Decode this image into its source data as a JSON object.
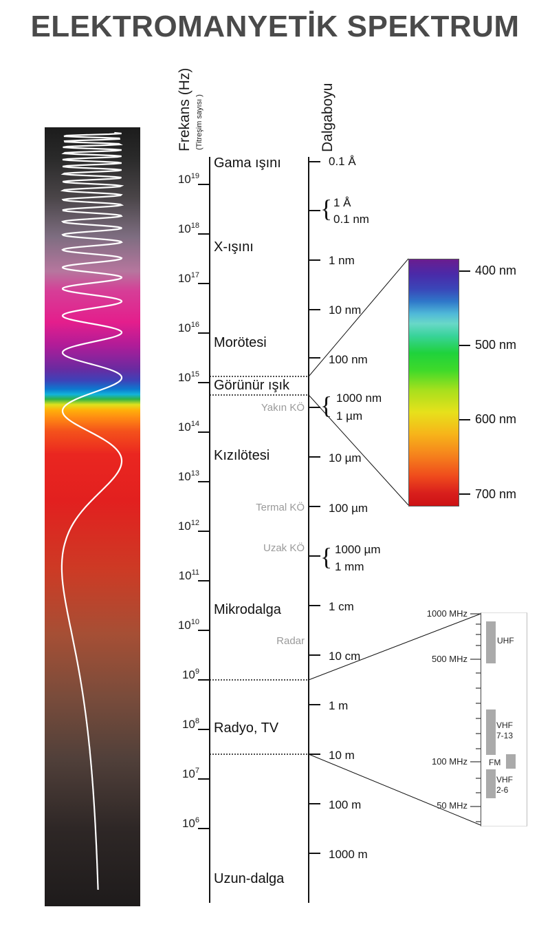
{
  "title": "ELEKTROMANYETİK SPEKTRUM",
  "axes": {
    "frequency_title": "Frekans (Hz)",
    "frequency_subtitle": "(Titreşim sayısı )",
    "wavelength_title": "Dalgaboyu"
  },
  "frequency_ticks": [
    {
      "base": "10",
      "exp": "19"
    },
    {
      "base": "10",
      "exp": "18"
    },
    {
      "base": "10",
      "exp": "17"
    },
    {
      "base": "10",
      "exp": "16"
    },
    {
      "base": "10",
      "exp": "15"
    },
    {
      "base": "10",
      "exp": "14"
    },
    {
      "base": "10",
      "exp": "13"
    },
    {
      "base": "10",
      "exp": "12"
    },
    {
      "base": "10",
      "exp": "11"
    },
    {
      "base": "10",
      "exp": "10"
    },
    {
      "base": "10",
      "exp": "9"
    },
    {
      "base": "10",
      "exp": "8"
    },
    {
      "base": "10",
      "exp": "7"
    },
    {
      "base": "10",
      "exp": "6"
    }
  ],
  "regions": [
    "Gama ışını",
    "X-ışını",
    "Morötesi",
    "Görünür ışık",
    "Kızılötesi",
    "Mikrodalga",
    "Radyo, TV",
    "Uzun-dalga"
  ],
  "subregions": [
    "Yakın KÖ",
    "Termal KÖ",
    "Uzak KÖ",
    "Radar"
  ],
  "wavelength_labels": {
    "single": [
      "0.1 Å",
      "1 nm",
      "10 nm",
      "100 nm",
      "10 µm",
      "100 µm",
      "1 cm",
      "10 cm",
      "1 m",
      "10 m",
      "100 m",
      "1000 m"
    ],
    "pairs": [
      {
        "top": "1 Å",
        "bottom": "0.1 nm"
      },
      {
        "top": "1000 nm",
        "bottom": "1 µm"
      },
      {
        "top": "1000 µm",
        "bottom": "1 mm"
      }
    ]
  },
  "visible_spectrum": {
    "labels": [
      "400 nm",
      "500 nm",
      "600 nm",
      "700 nm"
    ]
  },
  "radio_inset": {
    "freq_labels": [
      "1000 MHz",
      "500 MHz",
      "100 MHz",
      "50 MHz"
    ],
    "bands": [
      "UHF",
      "VHF\n7-13",
      "FM",
      "VHF\n2-6"
    ]
  }
}
